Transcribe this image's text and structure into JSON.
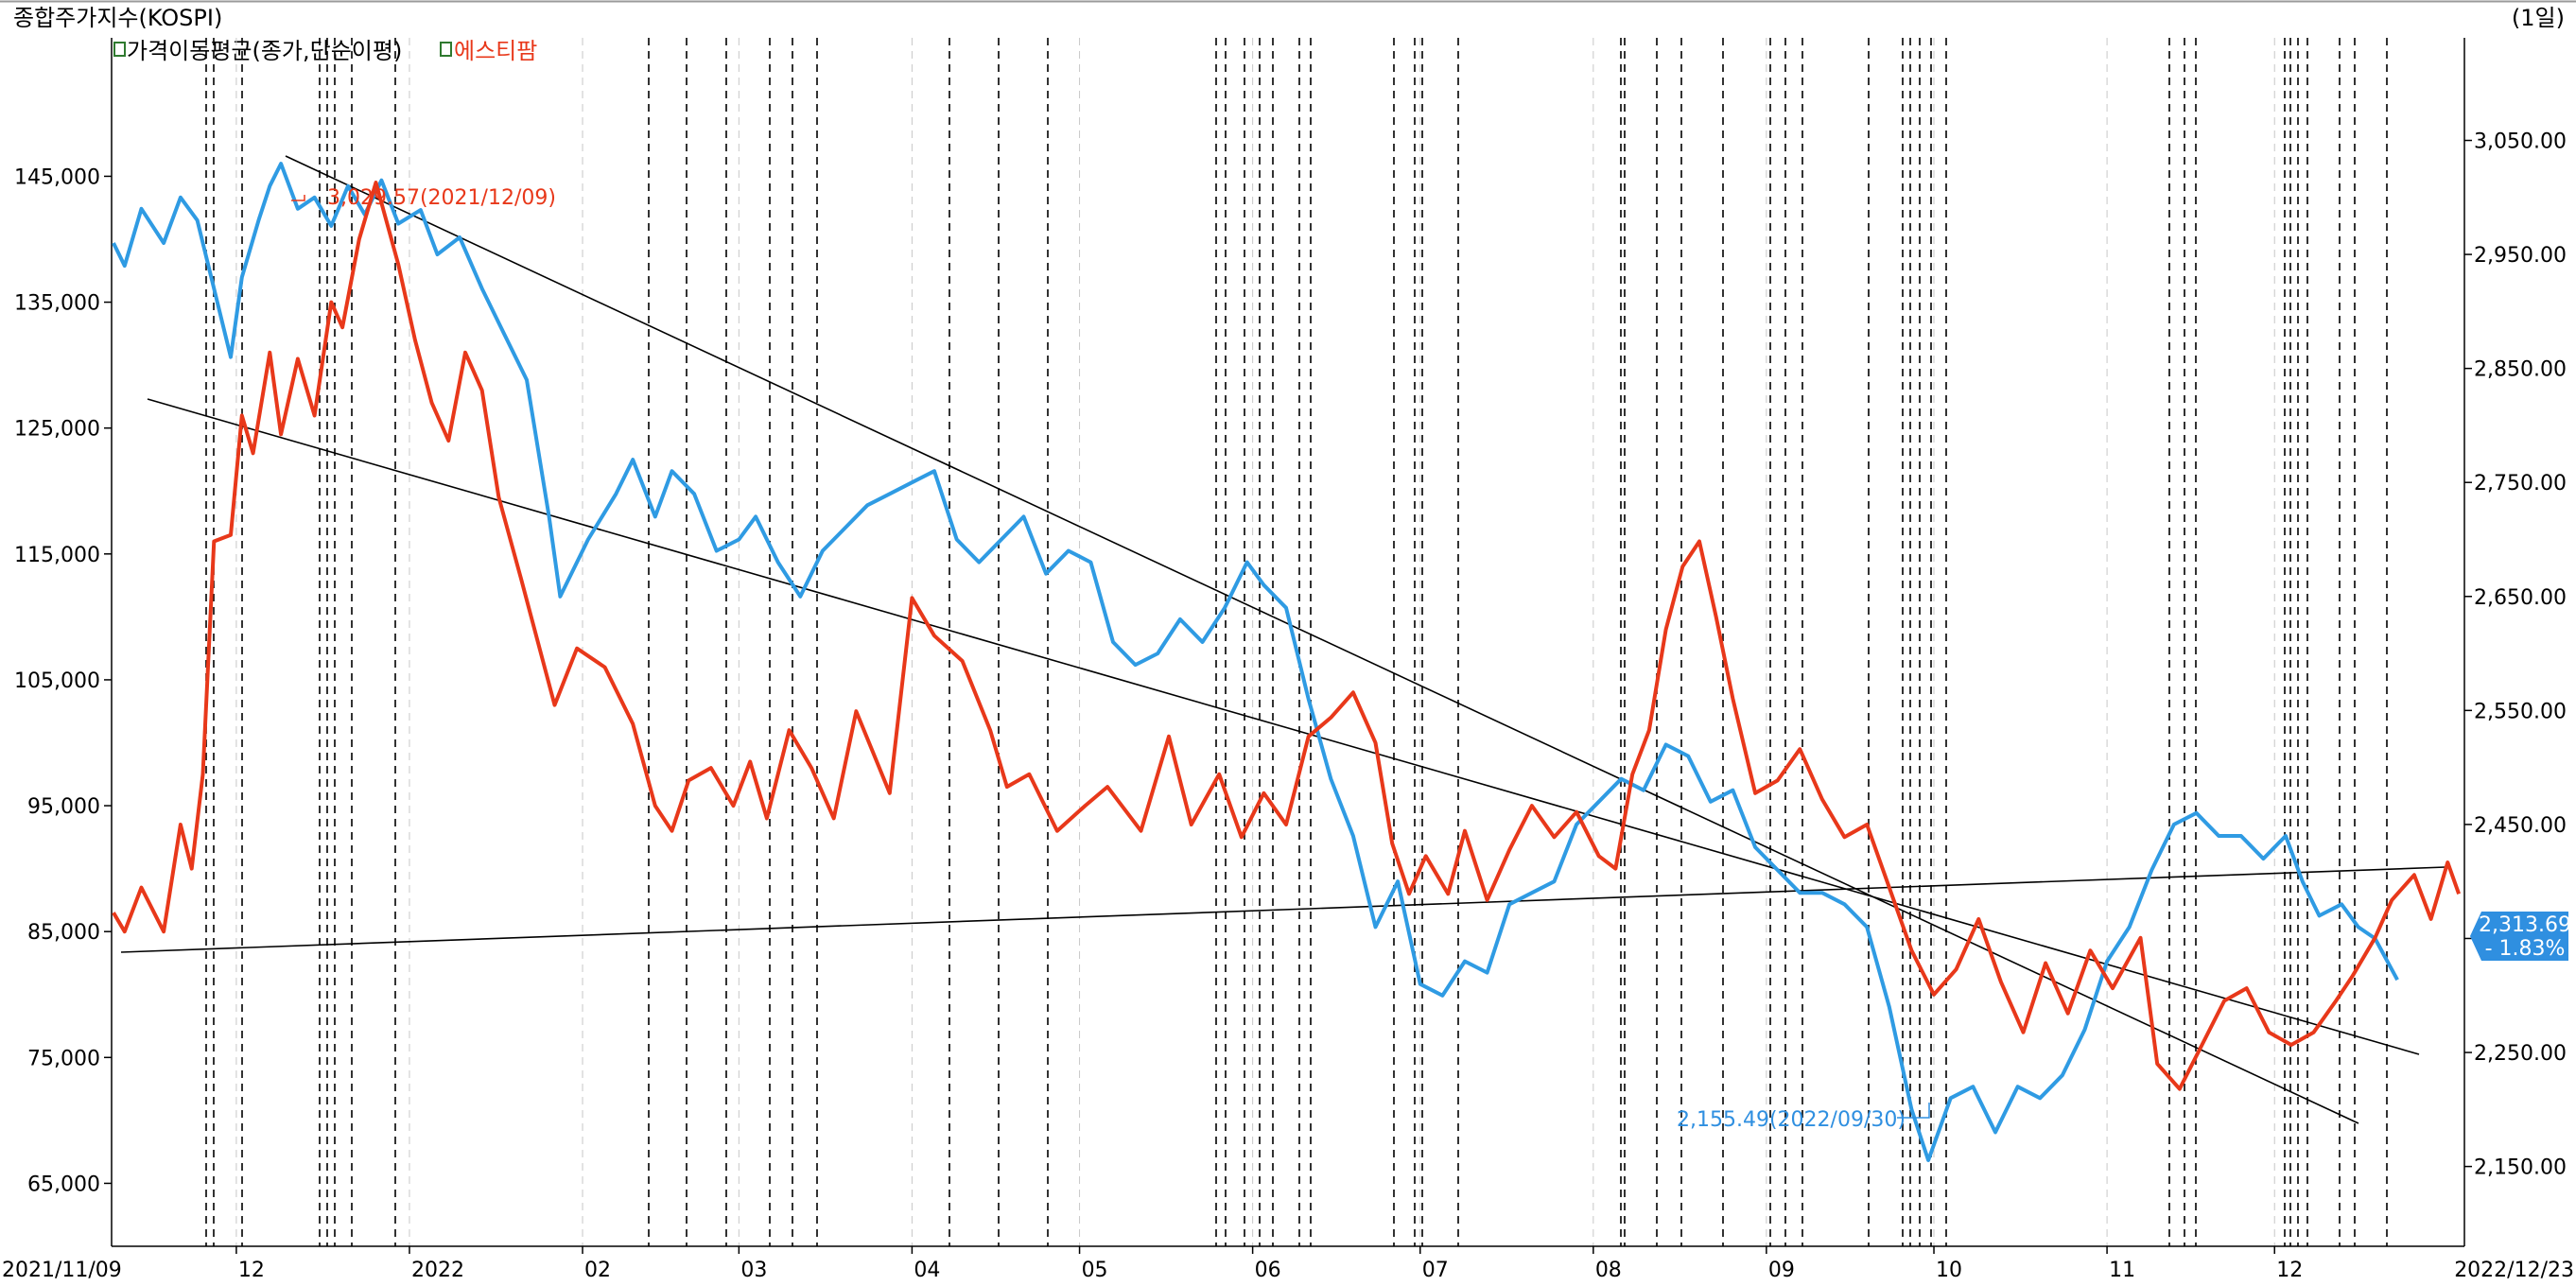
{
  "header": {
    "title": "종합주가지수(KOSPI)",
    "period": "(1일)"
  },
  "legend": [
    {
      "label": "가격이동평균(종가,단순이평)",
      "color": "#000000"
    },
    {
      "label": "에스티팜",
      "color": "#e8381a"
    }
  ],
  "current": {
    "value": "2,313.69",
    "change": "- 1.83%"
  },
  "colors": {
    "stock": "#e8381a",
    "kospi": "#2f9be3",
    "badge": "#2f8fe0",
    "grid": "#000000",
    "trend": "#000000"
  },
  "chart_data": {
    "type": "line",
    "x_range": [
      "2021/11/09",
      "2022/12/23"
    ],
    "x_tick_labels": [
      "2021/11/09",
      "12",
      "2022",
      "02",
      "03",
      "04",
      "05",
      "06",
      "07",
      "08",
      "09",
      "10",
      "11",
      "12",
      "2022/12/23"
    ],
    "left_axis": {
      "ticks": [
        "145,000",
        "135,000",
        "125,000",
        "115,000",
        "105,000",
        "95,000",
        "85,000",
        "75,000",
        "65,000"
      ],
      "range": [
        60000,
        156000
      ]
    },
    "right_axis": {
      "ticks": [
        "3,050.00",
        "2,950.00",
        "2,850.00",
        "2,750.00",
        "2,650.00",
        "2,550.00",
        "2,450.00",
        "2,350.00",
        "2,250.00",
        "2,150.00"
      ],
      "range": [
        2080,
        3140
      ]
    },
    "annotations": [
      {
        "text": "3,029.57(2021/12/09)",
        "series": "KOSPI",
        "date": "2021/12/09",
        "value": 3029.57
      },
      {
        "text": "2,155.49(2022/09/30)",
        "series": "KOSPI",
        "date": "2022/09/30",
        "value": 2155.49
      }
    ],
    "series": [
      {
        "name": "에스티팜",
        "axis": "left",
        "points": [
          [
            "2021/11/09",
            86500
          ],
          [
            "2021/11/11",
            85000
          ],
          [
            "2021/11/14",
            88500
          ],
          [
            "2021/11/18",
            85000
          ],
          [
            "2021/11/21",
            93500
          ],
          [
            "2021/11/23",
            90000
          ],
          [
            "2021/11/25",
            97500
          ],
          [
            "2021/11/27",
            116000
          ],
          [
            "2021/11/30",
            116500
          ],
          [
            "2021/12/02",
            126000
          ],
          [
            "2021/12/04",
            123000
          ],
          [
            "2021/12/07",
            131000
          ],
          [
            "2021/12/09",
            124500
          ],
          [
            "2021/12/12",
            130500
          ],
          [
            "2021/12/15",
            126000
          ],
          [
            "2021/12/18",
            135000
          ],
          [
            "2021/12/20",
            133000
          ],
          [
            "2021/12/23",
            140000
          ],
          [
            "2021/12/26",
            144500
          ],
          [
            "2021/12/30",
            138000
          ],
          [
            "2022/01/02",
            132000
          ],
          [
            "2022/01/05",
            127000
          ],
          [
            "2022/01/08",
            124000
          ],
          [
            "2022/01/11",
            131000
          ],
          [
            "2022/01/14",
            128000
          ],
          [
            "2022/01/17",
            119500
          ],
          [
            "2022/01/21",
            113000
          ],
          [
            "2022/01/24",
            108000
          ],
          [
            "2022/01/27",
            103000
          ],
          [
            "2022/01/31",
            107500
          ],
          [
            "2022/02/05",
            106000
          ],
          [
            "2022/02/10",
            101500
          ],
          [
            "2022/02/14",
            95000
          ],
          [
            "2022/02/17",
            93000
          ],
          [
            "2022/02/20",
            97000
          ],
          [
            "2022/02/24",
            98000
          ],
          [
            "2022/02/28",
            95000
          ],
          [
            "2022/03/03",
            98500
          ],
          [
            "2022/03/06",
            94000
          ],
          [
            "2022/03/10",
            101000
          ],
          [
            "2022/03/14",
            98000
          ],
          [
            "2022/03/18",
            94000
          ],
          [
            "2022/03/22",
            102500
          ],
          [
            "2022/03/28",
            96000
          ],
          [
            "2022/04/01",
            111500
          ],
          [
            "2022/04/05",
            108500
          ],
          [
            "2022/04/10",
            106500
          ],
          [
            "2022/04/15",
            101000
          ],
          [
            "2022/04/18",
            96500
          ],
          [
            "2022/04/22",
            97500
          ],
          [
            "2022/04/27",
            93000
          ],
          [
            "2022/05/02",
            95000
          ],
          [
            "2022/05/06",
            96500
          ],
          [
            "2022/05/12",
            93000
          ],
          [
            "2022/05/17",
            100500
          ],
          [
            "2022/05/21",
            93500
          ],
          [
            "2022/05/26",
            97500
          ],
          [
            "2022/05/30",
            92500
          ],
          [
            "2022/06/03",
            96000
          ],
          [
            "2022/06/07",
            93500
          ],
          [
            "2022/06/11",
            100500
          ],
          [
            "2022/06/15",
            102000
          ],
          [
            "2022/06/19",
            104000
          ],
          [
            "2022/06/23",
            100000
          ],
          [
            "2022/06/26",
            92000
          ],
          [
            "2022/06/29",
            88000
          ],
          [
            "2022/07/02",
            91000
          ],
          [
            "2022/07/06",
            88000
          ],
          [
            "2022/07/09",
            93000
          ],
          [
            "2022/07/13",
            87500
          ],
          [
            "2022/07/17",
            91500
          ],
          [
            "2022/07/21",
            95000
          ],
          [
            "2022/07/25",
            92500
          ],
          [
            "2022/07/29",
            94500
          ],
          [
            "2022/08/02",
            91000
          ],
          [
            "2022/08/05",
            90000
          ],
          [
            "2022/08/08",
            97500
          ],
          [
            "2022/08/11",
            101000
          ],
          [
            "2022/08/14",
            109000
          ],
          [
            "2022/08/17",
            114000
          ],
          [
            "2022/08/20",
            116000
          ],
          [
            "2022/08/23",
            110000
          ],
          [
            "2022/08/26",
            103500
          ],
          [
            "2022/08/30",
            96000
          ],
          [
            "2022/09/03",
            97000
          ],
          [
            "2022/09/07",
            99500
          ],
          [
            "2022/09/11",
            95500
          ],
          [
            "2022/09/15",
            92500
          ],
          [
            "2022/09/19",
            93500
          ],
          [
            "2022/09/23",
            88500
          ],
          [
            "2022/09/27",
            83500
          ],
          [
            "2022/10/01",
            80000
          ],
          [
            "2022/10/05",
            82000
          ],
          [
            "2022/10/09",
            86000
          ],
          [
            "2022/10/13",
            81000
          ],
          [
            "2022/10/17",
            77000
          ],
          [
            "2022/10/21",
            82500
          ],
          [
            "2022/10/25",
            78500
          ],
          [
            "2022/10/29",
            83500
          ],
          [
            "2022/11/02",
            80500
          ],
          [
            "2022/11/07",
            84500
          ],
          [
            "2022/11/10",
            74500
          ],
          [
            "2022/11/14",
            72500
          ],
          [
            "2022/11/18",
            76000
          ],
          [
            "2022/11/22",
            79500
          ],
          [
            "2022/11/26",
            80500
          ],
          [
            "2022/11/30",
            77000
          ],
          [
            "2022/12/04",
            76000
          ],
          [
            "2022/12/08",
            77000
          ],
          [
            "2022/12/12",
            79500
          ],
          [
            "2022/12/15",
            81500
          ],
          [
            "2022/12/19",
            84500
          ],
          [
            "2022/12/22",
            87500
          ],
          [
            "2022/12/26",
            89500
          ],
          [
            "2022/12/29",
            86000
          ],
          [
            "2023/01/01",
            90500
          ],
          [
            "2023/01/03",
            88000
          ]
        ]
      },
      {
        "name": "KOSPI",
        "axis": "right",
        "points": [
          [
            "2021/11/09",
            2960
          ],
          [
            "2021/11/11",
            2940
          ],
          [
            "2021/11/14",
            2990
          ],
          [
            "2021/11/18",
            2960
          ],
          [
            "2021/11/21",
            3000
          ],
          [
            "2021/11/24",
            2980
          ],
          [
            "2021/11/27",
            2920
          ],
          [
            "2021/11/30",
            2860
          ],
          [
            "2021/12/02",
            2930
          ],
          [
            "2021/12/05",
            2980
          ],
          [
            "2021/12/07",
            3010
          ],
          [
            "2021/12/09",
            3029.57
          ],
          [
            "2021/12/12",
            2990
          ],
          [
            "2021/12/15",
            3000
          ],
          [
            "2021/12/18",
            2975
          ],
          [
            "2021/12/21",
            3010
          ],
          [
            "2021/12/24",
            2985
          ],
          [
            "2021/12/27",
            3015
          ],
          [
            "2021/12/30",
            2977
          ],
          [
            "2022/01/03",
            2989
          ],
          [
            "2022/01/06",
            2950
          ],
          [
            "2022/01/10",
            2965
          ],
          [
            "2022/01/14",
            2920
          ],
          [
            "2022/01/18",
            2880
          ],
          [
            "2022/01/22",
            2840
          ],
          [
            "2022/01/26",
            2720
          ],
          [
            "2022/01/28",
            2650
          ],
          [
            "2022/02/02",
            2700
          ],
          [
            "2022/02/07",
            2740
          ],
          [
            "2022/02/10",
            2770
          ],
          [
            "2022/02/14",
            2720
          ],
          [
            "2022/02/17",
            2760
          ],
          [
            "2022/02/21",
            2740
          ],
          [
            "2022/02/25",
            2690
          ],
          [
            "2022/03/01",
            2700
          ],
          [
            "2022/03/04",
            2720
          ],
          [
            "2022/03/08",
            2680
          ],
          [
            "2022/03/12",
            2650
          ],
          [
            "2022/03/16",
            2690
          ],
          [
            "2022/03/20",
            2710
          ],
          [
            "2022/03/24",
            2730
          ],
          [
            "2022/03/28",
            2740
          ],
          [
            "2022/04/01",
            2750
          ],
          [
            "2022/04/05",
            2760
          ],
          [
            "2022/04/09",
            2700
          ],
          [
            "2022/04/13",
            2680
          ],
          [
            "2022/04/17",
            2700
          ],
          [
            "2022/04/21",
            2720
          ],
          [
            "2022/04/25",
            2670
          ],
          [
            "2022/04/29",
            2690
          ],
          [
            "2022/05/03",
            2680
          ],
          [
            "2022/05/07",
            2610
          ],
          [
            "2022/05/11",
            2590
          ],
          [
            "2022/05/15",
            2600
          ],
          [
            "2022/05/19",
            2630
          ],
          [
            "2022/05/23",
            2610
          ],
          [
            "2022/05/27",
            2640
          ],
          [
            "2022/05/31",
            2680
          ],
          [
            "2022/06/03",
            2660
          ],
          [
            "2022/06/07",
            2640
          ],
          [
            "2022/06/11",
            2560
          ],
          [
            "2022/06/15",
            2490
          ],
          [
            "2022/06/19",
            2440
          ],
          [
            "2022/06/23",
            2360
          ],
          [
            "2022/06/27",
            2400
          ],
          [
            "2022/07/01",
            2310
          ],
          [
            "2022/07/05",
            2300
          ],
          [
            "2022/07/09",
            2330
          ],
          [
            "2022/07/13",
            2320
          ],
          [
            "2022/07/17",
            2380
          ],
          [
            "2022/07/21",
            2390
          ],
          [
            "2022/07/25",
            2400
          ],
          [
            "2022/07/29",
            2450
          ],
          [
            "2022/08/02",
            2470
          ],
          [
            "2022/08/06",
            2490
          ],
          [
            "2022/08/10",
            2480
          ],
          [
            "2022/08/14",
            2520
          ],
          [
            "2022/08/18",
            2510
          ],
          [
            "2022/08/22",
            2470
          ],
          [
            "2022/08/26",
            2480
          ],
          [
            "2022/08/30",
            2430
          ],
          [
            "2022/09/03",
            2410
          ],
          [
            "2022/09/07",
            2390
          ],
          [
            "2022/09/11",
            2390
          ],
          [
            "2022/09/15",
            2380
          ],
          [
            "2022/09/19",
            2360
          ],
          [
            "2022/09/23",
            2290
          ],
          [
            "2022/09/27",
            2200
          ],
          [
            "2022/09/30",
            2155.49
          ],
          [
            "2022/10/04",
            2210
          ],
          [
            "2022/10/08",
            2220
          ],
          [
            "2022/10/12",
            2180
          ],
          [
            "2022/10/16",
            2220
          ],
          [
            "2022/10/20",
            2210
          ],
          [
            "2022/10/24",
            2230
          ],
          [
            "2022/10/28",
            2270
          ],
          [
            "2022/11/01",
            2330
          ],
          [
            "2022/11/05",
            2360
          ],
          [
            "2022/11/09",
            2410
          ],
          [
            "2022/11/13",
            2450
          ],
          [
            "2022/11/17",
            2460
          ],
          [
            "2022/11/21",
            2440
          ],
          [
            "2022/11/25",
            2440
          ],
          [
            "2022/11/29",
            2420
          ],
          [
            "2022/12/03",
            2440
          ],
          [
            "2022/12/06",
            2400
          ],
          [
            "2022/12/09",
            2370
          ],
          [
            "2022/12/13",
            2380
          ],
          [
            "2022/12/16",
            2360
          ],
          [
            "2022/12/19",
            2350
          ],
          [
            "2022/12/23",
            2313.69
          ]
        ]
      }
    ]
  }
}
